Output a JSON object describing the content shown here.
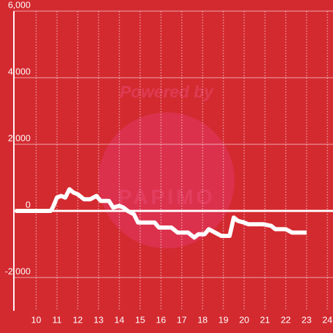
{
  "chart_data": {
    "type": "line",
    "watermark": [
      "Powered by",
      "PAPIMO"
    ],
    "x": [
      9.0,
      10.7,
      10.8,
      11.0,
      11.2,
      11.4,
      11.6,
      11.8,
      12.0,
      12.3,
      12.6,
      12.9,
      13.1,
      13.5,
      13.7,
      14.0,
      14.2,
      14.4,
      14.7,
      14.9,
      15.7,
      15.9,
      16.5,
      16.8,
      17.3,
      17.6,
      17.8,
      18.1,
      18.3,
      18.6,
      18.9,
      19.3,
      19.5,
      19.7,
      20.0,
      20.2,
      20.9,
      21.3,
      21.5,
      22.0,
      22.3,
      23.0
    ],
    "series": [
      {
        "color": "#ffffff",
        "values": [
          0,
          0,
          100,
          400,
          450,
          400,
          650,
          550,
          500,
          350,
          350,
          450,
          300,
          300,
          100,
          150,
          100,
          0,
          -100,
          -350,
          -350,
          -500,
          -500,
          -650,
          -650,
          -800,
          -700,
          -700,
          -550,
          -650,
          -750,
          -750,
          -200,
          -300,
          -350,
          -400,
          -400,
          -450,
          -550,
          -550,
          -650,
          -650
        ]
      }
    ],
    "xlim": [
      8.93,
      24.27
    ],
    "xticks": [
      10,
      11,
      12,
      13,
      14,
      15,
      16,
      17,
      18,
      19,
      20,
      21,
      22,
      23,
      24
    ],
    "ylim": [
      -3000,
      6000
    ],
    "yticks": [
      {
        "value": -2000,
        "label": "-2,000"
      },
      0,
      {
        "value": 2000,
        "label": "2,000"
      },
      {
        "value": 4000,
        "label": "4,000"
      },
      {
        "value": 6000,
        "label": "6,000"
      }
    ],
    "grid": true
  }
}
